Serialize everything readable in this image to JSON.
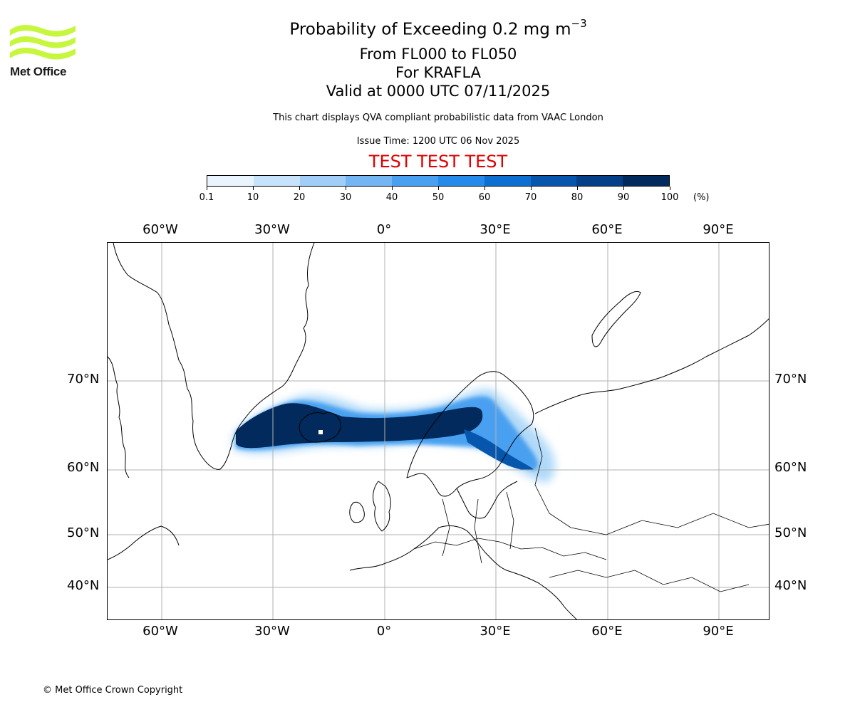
{
  "logo": {
    "text": "Met Office",
    "brand_color": "#c6f73c"
  },
  "title": {
    "line1": "Probability of Exceeding 0.2 mg m",
    "line1_exponent": "−3",
    "line2": "From FL000 to FL050",
    "line3": "For KRAFLA",
    "line4": "Valid at 0000 UTC 07/11/2025"
  },
  "subtitle": "This chart displays QVA compliant probabilistic data from VAAC London",
  "issue_time": "Issue Time: 1200 UTC 06 Nov 2025",
  "test_banner": "TEST TEST TEST",
  "colorbar": {
    "ticks": [
      "0.1",
      "10",
      "20",
      "30",
      "40",
      "50",
      "60",
      "70",
      "80",
      "90",
      "100"
    ],
    "unit": "(%)",
    "colors": [
      "#eaf4ff",
      "#c7e3fb",
      "#a0cef8",
      "#74b6f4",
      "#4aa0f0",
      "#258ae9",
      "#0d6fd1",
      "#0756ad",
      "#053f88",
      "#022a5c"
    ]
  },
  "map": {
    "lon_labels": [
      "60°W",
      "30°W",
      "0°",
      "30°E",
      "60°E",
      "90°E"
    ],
    "lat_labels": [
      "70°N",
      "60°N",
      "50°N",
      "40°N"
    ],
    "volcano_marker_color": "#ffffff"
  },
  "copyright": "© Met Office Crown Copyright"
}
